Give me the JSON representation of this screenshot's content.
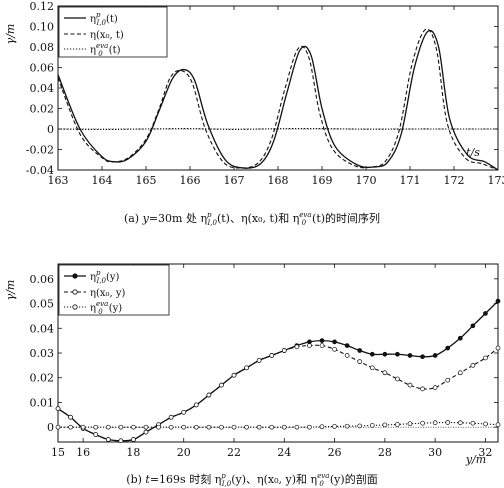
{
  "chart_data": [
    {
      "type": "line",
      "caption": {
        "text1": "(a) ",
        "y_var": "y",
        "text2": "=30m 处 ",
        "eta": "η",
        "sup": "p",
        "sub": "I,0",
        "t_arg": "(t)、",
        "eta2": "η",
        "arg2": "(x₀, t)和 ",
        "eta3": "η",
        "sup3": "eva",
        "sub3": "0",
        "text3": "(t)的时间序列"
      },
      "xlabel": "t/s",
      "ylabel": "γ/m",
      "xlim": [
        163,
        173
      ],
      "ylim": [
        -0.04,
        0.12
      ],
      "xticks": [
        163,
        164,
        165,
        166,
        167,
        168,
        169,
        170,
        171,
        172,
        173
      ],
      "yticks": [
        "-0.04",
        "-0.02",
        "0",
        "0.02",
        "0.04",
        "0.06",
        "0.08",
        "0.10",
        "0.12"
      ],
      "ytick_values": [
        -0.04,
        -0.02,
        0,
        0.02,
        0.04,
        0.06,
        0.08,
        0.1,
        0.12
      ],
      "legend_position": "top-left",
      "series": [
        {
          "name": "η_{I,0}^{p}(t)",
          "legend": {
            "base": "η",
            "sup": "p",
            "sub": "I,0",
            "arg": "(t)"
          },
          "style": "solid",
          "x": [
            163,
            163.5,
            164,
            164.3,
            164.6,
            165,
            165.3,
            165.6,
            165.85,
            166.1,
            166.4,
            166.8,
            167.2,
            167.6,
            167.9,
            168.2,
            168.5,
            168.75,
            169,
            169.3,
            169.8,
            170.2,
            170.5,
            170.8,
            171.1,
            171.4,
            171.65,
            171.9,
            172.3,
            172.7,
            173
          ],
          "y": [
            0.053,
            0.0,
            -0.027,
            -0.032,
            -0.029,
            -0.012,
            0.018,
            0.049,
            0.058,
            0.048,
            0.005,
            -0.03,
            -0.038,
            -0.034,
            -0.012,
            0.035,
            0.077,
            0.072,
            0.02,
            -0.017,
            -0.035,
            -0.037,
            -0.032,
            -0.005,
            0.06,
            0.095,
            0.08,
            0.01,
            -0.025,
            -0.032,
            -0.04
          ]
        },
        {
          "name": "η(x₀,t)",
          "legend": {
            "base": "η",
            "sup": "",
            "sub": "",
            "arg": "(x₀, t)"
          },
          "style": "dashed",
          "x": [
            163,
            163.5,
            164,
            164.25,
            164.6,
            165,
            165.3,
            165.55,
            165.8,
            166.05,
            166.35,
            166.75,
            167.15,
            167.55,
            167.85,
            168.15,
            168.45,
            168.7,
            168.95,
            169.25,
            169.75,
            170.15,
            170.45,
            170.75,
            171.05,
            171.35,
            171.6,
            171.85,
            172.25,
            172.65,
            173
          ],
          "y": [
            0.05,
            -0.005,
            -0.028,
            -0.032,
            -0.028,
            -0.01,
            0.02,
            0.05,
            0.057,
            0.045,
            0.0,
            -0.032,
            -0.038,
            -0.033,
            -0.01,
            0.038,
            0.078,
            0.07,
            0.015,
            -0.02,
            -0.036,
            -0.037,
            -0.031,
            -0.002,
            0.064,
            0.097,
            0.078,
            0.005,
            -0.028,
            -0.034,
            -0.04
          ]
        },
        {
          "name": "η_{0}^{eva}(t)",
          "legend": {
            "base": "η",
            "sup": "eva",
            "sub": "0",
            "arg": "(t)"
          },
          "style": "dotted",
          "x": [
            163,
            164,
            165,
            166,
            167,
            168,
            169,
            170,
            171,
            172,
            173
          ],
          "y": [
            0.0,
            -0.0005,
            0.0,
            0.0004,
            -0.0004,
            0.0003,
            0.0004,
            -0.0002,
            0.0,
            0.0,
            0.0
          ]
        }
      ]
    },
    {
      "type": "line",
      "caption": {
        "text1": "(b) ",
        "t_var": "t",
        "text2": "=169s 时刻 ",
        "eta": "η",
        "sup": "p",
        "sub": "I,0",
        "t_arg": "(y)、",
        "eta2": "η",
        "arg2": "(x₀, y)和 ",
        "eta3": "η",
        "sup3": "eva",
        "sub3": "0",
        "text3": "(y)的剖面"
      },
      "xlabel": "y/m",
      "ylabel": "γ/m",
      "xlim": [
        15,
        32.5
      ],
      "ylim": [
        -0.006,
        0.066
      ],
      "xticks": [
        15,
        16,
        18,
        20,
        22,
        24,
        26,
        28,
        30,
        32
      ],
      "yticks": [
        "0",
        "0.01",
        "0.02",
        "0.03",
        "0.04",
        "0.05",
        "0.06"
      ],
      "ytick_values": [
        0,
        0.01,
        0.02,
        0.03,
        0.04,
        0.05,
        0.06
      ],
      "legend_position": "top-left",
      "series": [
        {
          "name": "η_{I,0}^{p}(y)",
          "legend": {
            "base": "η",
            "sup": "p",
            "sub": "I,0",
            "arg": "(y)"
          },
          "style": "solid-filled-markers",
          "x": [
            15,
            15.5,
            16,
            16.5,
            17,
            17.5,
            18,
            18.5,
            19,
            19.5,
            20,
            20.5,
            21,
            21.5,
            22,
            22.5,
            23,
            23.5,
            24,
            24.5,
            25,
            25.5,
            26,
            26.5,
            27,
            27.5,
            28,
            28.5,
            29,
            29.5,
            30,
            30.5,
            31,
            31.5,
            32,
            32.5
          ],
          "y": [
            0.0075,
            0.004,
            -0.0005,
            -0.003,
            -0.005,
            -0.0055,
            -0.005,
            -0.002,
            0.001,
            0.004,
            0.006,
            0.009,
            0.013,
            0.017,
            0.021,
            0.024,
            0.027,
            0.029,
            0.031,
            0.033,
            0.0345,
            0.035,
            0.0345,
            0.033,
            0.031,
            0.0295,
            0.0295,
            0.0295,
            0.029,
            0.0285,
            0.029,
            0.032,
            0.036,
            0.041,
            0.046,
            0.051
          ]
        },
        {
          "name": "η(x₀,y)",
          "legend": {
            "base": "η",
            "sup": "",
            "sub": "",
            "arg": "(x₀, y)"
          },
          "style": "dashed-open-markers",
          "x": [
            15,
            15.5,
            16,
            16.5,
            17,
            17.5,
            18,
            18.5,
            19,
            19.5,
            20,
            20.5,
            21,
            21.5,
            22,
            22.5,
            23,
            23.5,
            24,
            24.5,
            25,
            25.5,
            26,
            26.5,
            27,
            27.5,
            28,
            28.5,
            29,
            29.5,
            30,
            30.5,
            31,
            31.5,
            32,
            32.5
          ],
          "y": [
            0.0075,
            0.004,
            -0.0005,
            -0.003,
            -0.005,
            -0.0055,
            -0.005,
            -0.002,
            0.001,
            0.004,
            0.006,
            0.009,
            0.013,
            0.017,
            0.021,
            0.024,
            0.027,
            0.029,
            0.031,
            0.0325,
            0.033,
            0.033,
            0.0315,
            0.029,
            0.0265,
            0.024,
            0.022,
            0.0195,
            0.017,
            0.0155,
            0.016,
            0.019,
            0.022,
            0.025,
            0.028,
            0.032
          ]
        },
        {
          "name": "η_{0}^{eva}(y)",
          "legend": {
            "base": "η",
            "sup": "eva",
            "sub": "0",
            "arg": "(y)"
          },
          "style": "dotted-open-markers",
          "x": [
            15,
            15.5,
            16,
            16.5,
            17,
            17.5,
            18,
            18.5,
            19,
            19.5,
            20,
            20.5,
            21,
            21.5,
            22,
            22.5,
            23,
            23.5,
            24,
            24.5,
            25,
            25.5,
            26,
            26.5,
            27,
            27.5,
            28,
            28.5,
            29,
            29.5,
            30,
            30.5,
            31,
            31.5,
            32,
            32.5
          ],
          "y": [
            0,
            0,
            0,
            0,
            0,
            0,
            0,
            0,
            0,
            0,
            0,
            0,
            0,
            0,
            0,
            0,
            0,
            0,
            0,
            0,
            0,
            0.0002,
            0.0003,
            0.0004,
            0.0005,
            0.0007,
            0.0009,
            0.0011,
            0.0014,
            0.0016,
            0.0018,
            0.0019,
            0.0018,
            0.0016,
            0.0013,
            0.001
          ]
        }
      ]
    }
  ]
}
